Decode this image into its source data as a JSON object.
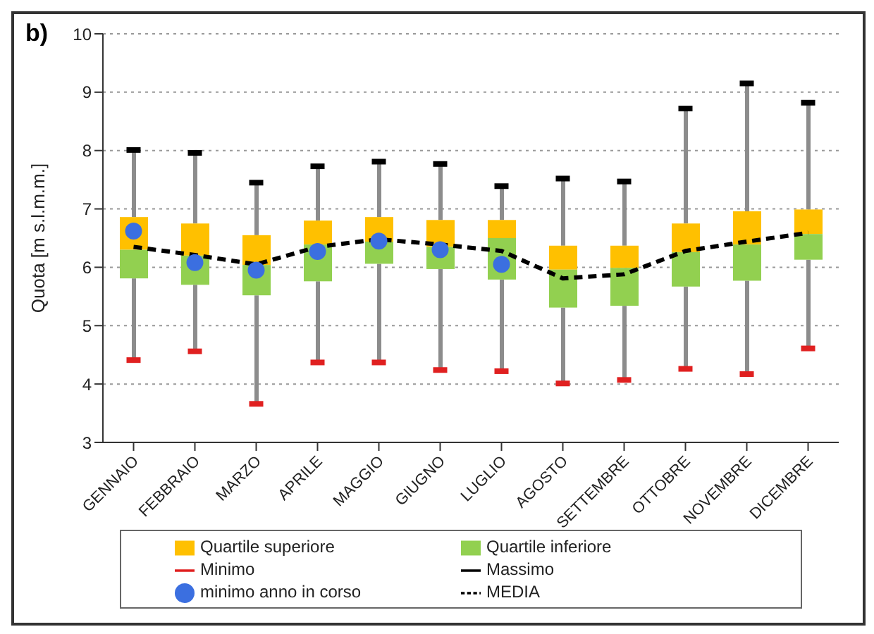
{
  "chart_data": {
    "type": "bar",
    "title": "b)",
    "ylabel": "Quota [m s.l.m.m.]",
    "categories": [
      "GENNAIO",
      "FEBBRAIO",
      "MARZO",
      "APRILE",
      "MAGGIO",
      "GIUGNO",
      "LUGLIO",
      "AGOSTO",
      "SETTEMBRE",
      "OTTOBRE",
      "NOVEMBRE",
      "DICEMBRE"
    ],
    "ylim": [
      3,
      10
    ],
    "yticks": [
      3,
      4,
      5,
      6,
      7,
      8,
      9,
      10
    ],
    "grid": "y",
    "legend": "bottom",
    "series": [
      {
        "name": "Quartile superiore",
        "color": "#ffc000",
        "base": [
          6.3,
          6.2,
          6.04,
          6.39,
          6.44,
          6.35,
          6.5,
          5.96,
          5.99,
          6.26,
          6.39,
          6.57
        ],
        "values": [
          0.56,
          0.55,
          0.51,
          0.41,
          0.42,
          0.46,
          0.31,
          0.41,
          0.38,
          0.49,
          0.57,
          0.42
        ],
        "errors": [
          [
            6.86,
            8.01
          ],
          [
            6.75,
            7.96
          ],
          [
            6.55,
            7.45
          ],
          [
            6.8,
            7.73
          ],
          [
            6.86,
            7.81
          ],
          [
            6.81,
            7.77
          ],
          [
            6.81,
            7.39
          ],
          [
            6.37,
            7.52
          ],
          [
            6.37,
            7.47
          ],
          [
            6.75,
            8.72
          ],
          [
            6.96,
            9.15
          ],
          [
            6.99,
            8.82
          ]
        ]
      },
      {
        "name": "Quartile inferiore",
        "color": "#92d050",
        "base": [
          5.81,
          5.7,
          5.52,
          5.76,
          6.06,
          5.97,
          5.79,
          5.31,
          5.34,
          5.67,
          5.77,
          6.13
        ],
        "values": [
          0.49,
          0.5,
          0.52,
          0.63,
          0.38,
          0.38,
          0.71,
          0.65,
          0.65,
          0.59,
          0.62,
          0.44
        ],
        "errors": [
          [
            4.41,
            5.81
          ],
          [
            4.56,
            5.7
          ],
          [
            3.66,
            5.52
          ],
          [
            4.37,
            5.76
          ],
          [
            4.37,
            6.06
          ],
          [
            4.24,
            5.97
          ],
          [
            4.22,
            5.79
          ],
          [
            4.01,
            5.31
          ],
          [
            4.07,
            5.34
          ],
          [
            4.26,
            5.67
          ],
          [
            4.17,
            5.77
          ],
          [
            4.61,
            6.13
          ]
        ]
      },
      {
        "type": "scatter",
        "name": "Minimo",
        "color": "#e02020",
        "values": [
          4.41,
          4.56,
          3.66,
          4.37,
          4.37,
          4.24,
          4.22,
          4.01,
          4.07,
          4.26,
          4.17,
          4.61
        ]
      },
      {
        "type": "scatter",
        "name": "Massimo",
        "color": "#000000",
        "values": [
          8.01,
          7.96,
          7.45,
          7.73,
          7.81,
          7.77,
          7.39,
          7.52,
          7.47,
          8.72,
          9.15,
          8.82
        ]
      },
      {
        "type": "scatter",
        "name": "minimo anno in corso",
        "color": "#3b6fe0",
        "marker": "circle",
        "values": [
          6.62,
          6.08,
          5.95,
          6.27,
          6.45,
          6.3,
          6.05,
          null,
          null,
          null,
          null,
          null
        ]
      },
      {
        "type": "line",
        "name": "MEDIA",
        "color": "#000000",
        "line_style": "dashed",
        "values": [
          6.35,
          6.21,
          6.05,
          6.35,
          6.48,
          6.39,
          6.28,
          5.81,
          5.88,
          6.28,
          6.44,
          6.59
        ]
      }
    ]
  }
}
